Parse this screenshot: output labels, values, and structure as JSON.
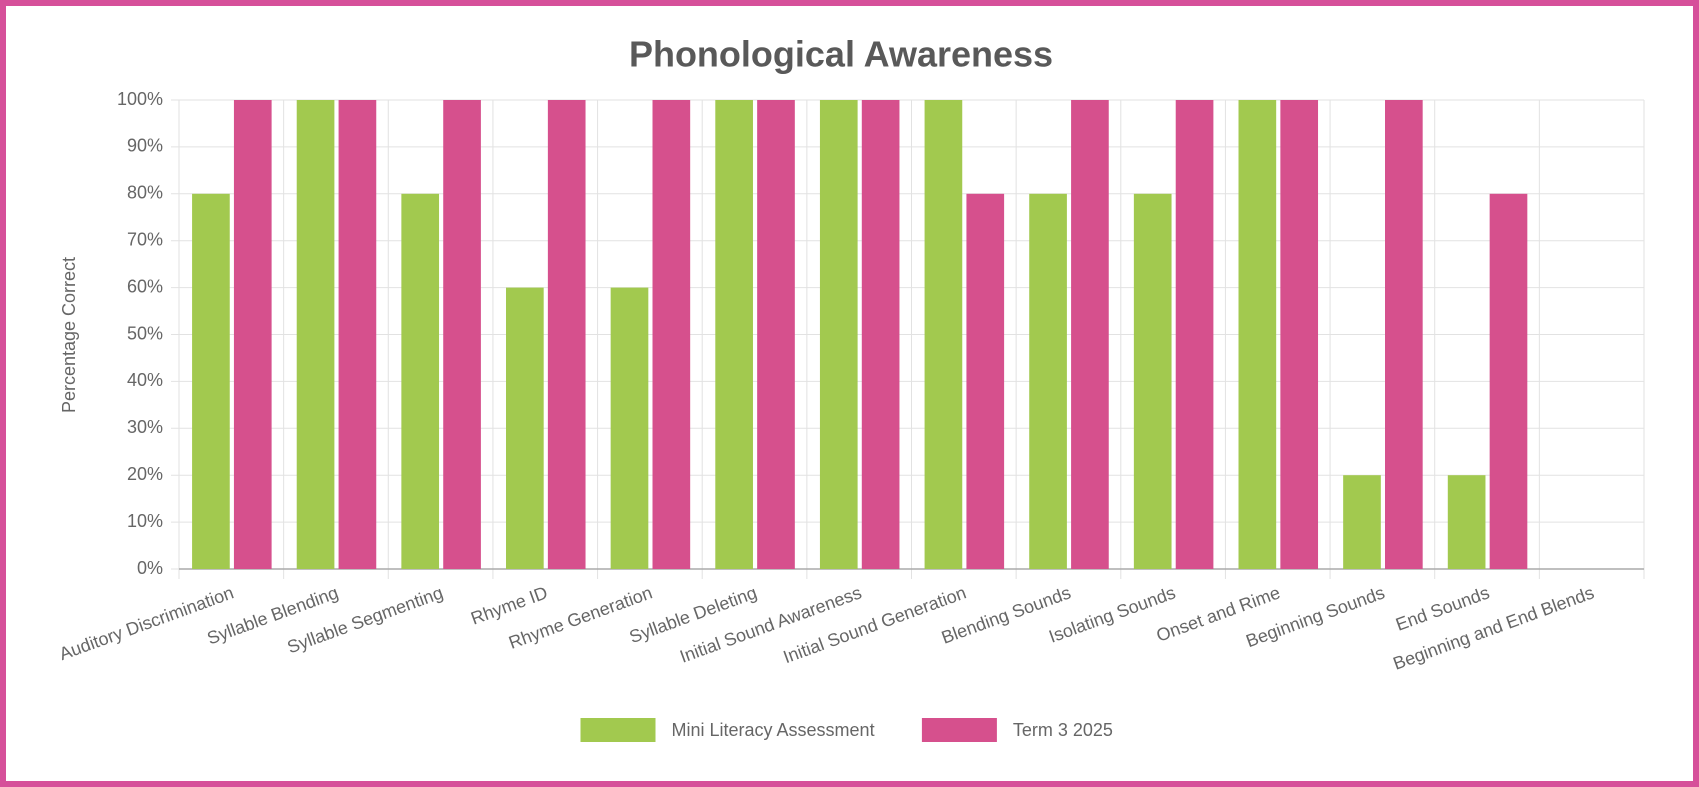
{
  "chart_data": {
    "type": "bar",
    "title": "Phonological Awareness",
    "y_label": "Percentage Correct",
    "categories": [
      "Auditory Discrimination",
      "Syllable Blending",
      "Syllable Segmenting",
      "Rhyme ID",
      "Rhyme Generation",
      "Syllable Deleting",
      "Initial Sound Awareness",
      "Initial Sound Generation",
      "Blending Sounds",
      "Isolating Sounds",
      "Onset and Rime",
      "Beginning Sounds",
      "End Sounds",
      "Beginning and End Blends"
    ],
    "series": [
      {
        "name": "Mini Literacy Assessment",
        "color": "#a2c94f",
        "values": [
          80,
          100,
          80,
          60,
          60,
          100,
          100,
          100,
          80,
          80,
          100,
          20,
          20,
          null
        ]
      },
      {
        "name": "Term 3 2025",
        "color": "#d6508d",
        "values": [
          100,
          100,
          100,
          100,
          100,
          100,
          100,
          80,
          100,
          100,
          100,
          100,
          80,
          null
        ]
      }
    ],
    "ylim": [
      0,
      100
    ],
    "yticks": [
      {
        "value": 0,
        "label": "0%"
      },
      {
        "value": 10,
        "label": "10%"
      },
      {
        "value": 20,
        "label": "20%"
      },
      {
        "value": 30,
        "label": "30%"
      },
      {
        "value": 40,
        "label": "40%"
      },
      {
        "value": 50,
        "label": "50%"
      },
      {
        "value": 60,
        "label": "60%"
      },
      {
        "value": 70,
        "label": "70%"
      },
      {
        "value": 80,
        "label": "80%"
      },
      {
        "value": 90,
        "label": "90%"
      },
      {
        "value": 100,
        "label": "100%"
      }
    ],
    "grid": true,
    "legend": "bottom"
  }
}
